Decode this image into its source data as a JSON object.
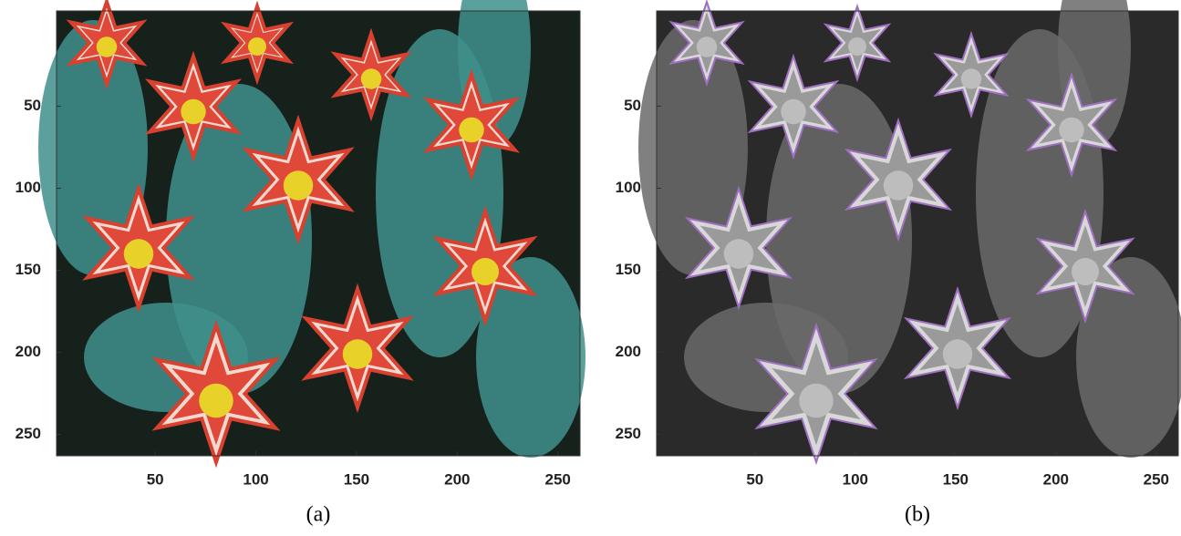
{
  "chart_data": [
    {
      "type": "image",
      "caption": "(a)",
      "palette": "color",
      "xlim": [
        1,
        261
      ],
      "ylim": [
        -8,
        263
      ],
      "xticks": [
        50,
        100,
        150,
        200,
        250
      ],
      "yticks": [
        50,
        100,
        150,
        200,
        250
      ]
    },
    {
      "type": "image",
      "caption": "(b)",
      "palette": "gray",
      "xlim": [
        1,
        261
      ],
      "ylim": [
        -8,
        263
      ],
      "xticks": [
        50,
        100,
        150,
        200,
        250
      ],
      "yticks": [
        50,
        100,
        150,
        200,
        250
      ]
    }
  ]
}
